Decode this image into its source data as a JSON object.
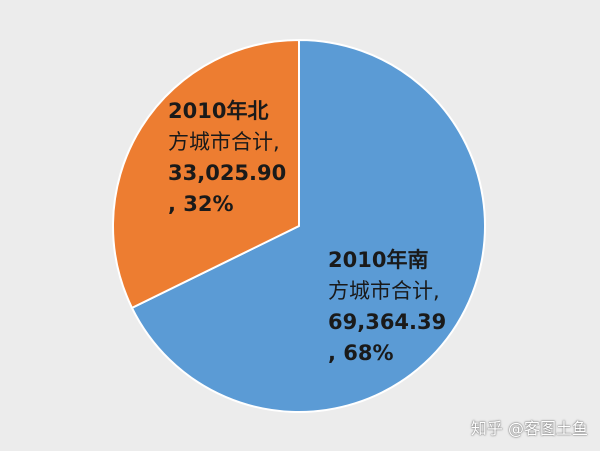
{
  "chart_data": {
    "type": "pie",
    "slices": [
      {
        "name": "2010年南方城市合计",
        "value": 69364.39,
        "percent": 68,
        "color": "#5b9bd5",
        "label_lines": [
          "2010年南",
          "方城市合计,",
          "69,364.39",
          ", 68%"
        ]
      },
      {
        "name": "2010年北方城市合计",
        "value": 33025.9,
        "percent": 32,
        "color": "#ed7d31",
        "label_lines": [
          "2010年北",
          "方城市合计,",
          "33,025.90",
          ", 32%"
        ]
      }
    ],
    "start_angle": "12 o'clock",
    "direction": "clockwise",
    "slice_border_color": "#ffffff"
  },
  "watermark": "知乎 @客图土鱼"
}
